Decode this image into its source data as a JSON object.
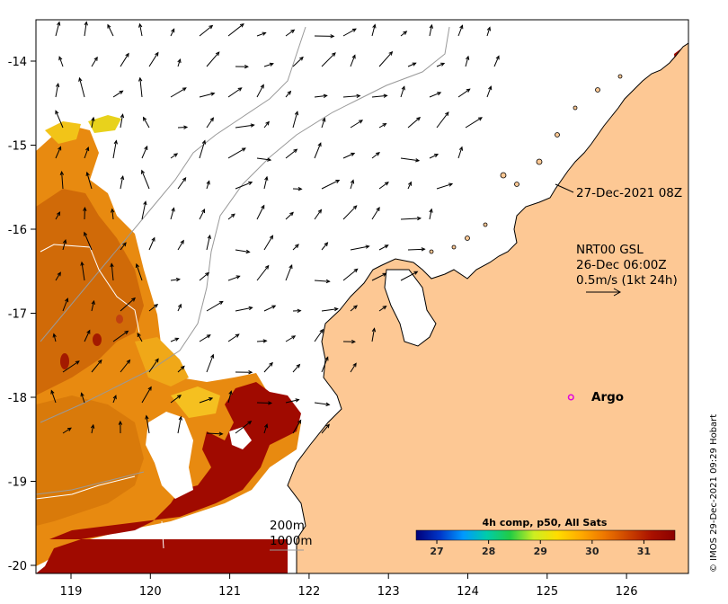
{
  "axes": {
    "x_ticks": [
      "119",
      "120",
      "121",
      "122",
      "123",
      "124",
      "125",
      "126"
    ],
    "y_ticks": [
      "-14",
      "-15",
      "-16",
      "-17",
      "-18",
      "-19",
      "-20"
    ]
  },
  "annotations": {
    "timestamp": "27-Dec-2021 08Z",
    "current_title": "NRT00 GSL",
    "current_time": "26-Dec 06:00Z",
    "current_scale": "0.5m/s (1kt 24h)",
    "contour_200": "200m",
    "contour_1000": "1000m"
  },
  "argo": {
    "label": "Argo",
    "marker_color": "#e000e0",
    "lon": 125.3,
    "lat": -18.0
  },
  "colorbar": {
    "title": "4h comp, p50, All Sats",
    "ticks": [
      "27",
      "28",
      "29",
      "30",
      "31"
    ],
    "colors": [
      "#00007a",
      "#0035c8",
      "#0099ff",
      "#00ccaa",
      "#22cc44",
      "#ccee22",
      "#ffdd00",
      "#ffaa00",
      "#ee7700",
      "#cc4400",
      "#aa1100",
      "#8b0000"
    ]
  },
  "credit": "© IMOS 29-Dec-2021 09:29 Hobart",
  "colors": {
    "land": "#fdc894",
    "coastline": "#000000",
    "warm_sst": "#a00a00",
    "contour": "#999999"
  }
}
